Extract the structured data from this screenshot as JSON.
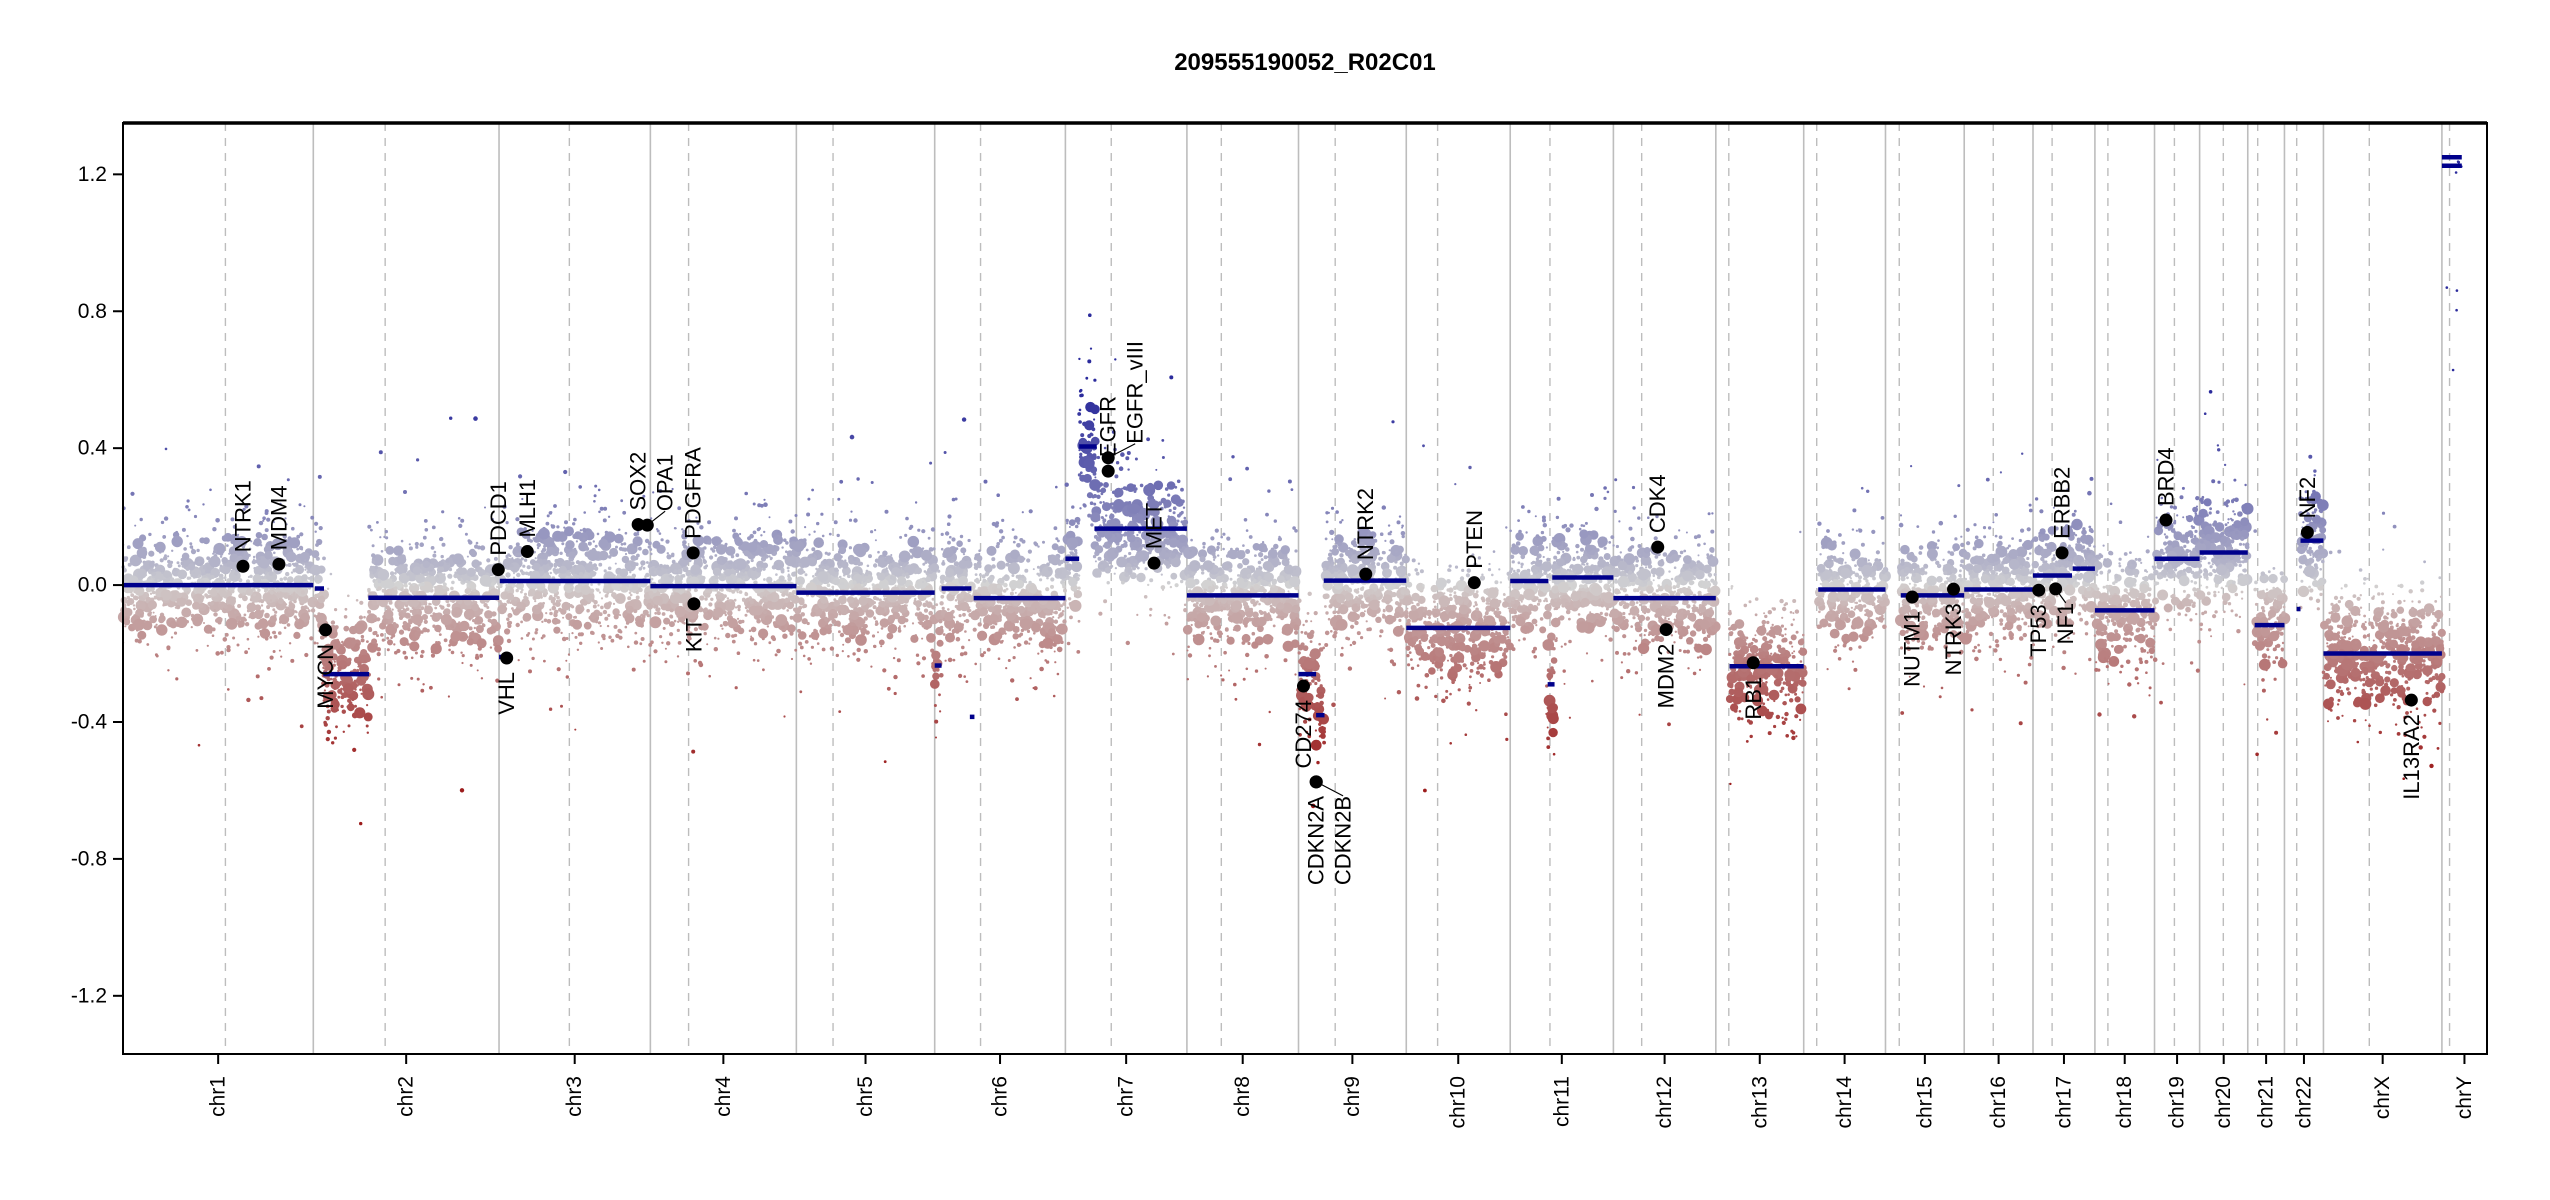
{
  "chart_data": {
    "type": "scatter",
    "title": "209555190052_R02C01",
    "xlabel": "",
    "ylabel": "",
    "ylim": [
      -1.37,
      1.35
    ],
    "yticks": [
      1.2,
      0.8,
      0.4,
      0.0,
      -0.4,
      -0.8,
      -1.2
    ],
    "ytick_labels": [
      "1.2",
      "0.8",
      "0.4",
      "0.0",
      "-0.4",
      "-0.8",
      "-1.2"
    ],
    "grid": "chromosome boundaries (solid) and centromeres (dashed)",
    "colors": {
      "gain": "#2b2b9c",
      "neutral": "#d3d3d3",
      "loss": "#9c1c1c",
      "segment": "#00008b",
      "gene": "#000000",
      "boundary": "#bdbdbd"
    },
    "chromosomes": [
      {
        "name": "chr1",
        "length": 249,
        "centromere": 134
      },
      {
        "name": "chr2",
        "length": 243,
        "centromere": 94
      },
      {
        "name": "chr3",
        "length": 198,
        "centromere": 92
      },
      {
        "name": "chr4",
        "length": 191,
        "centromere": 50
      },
      {
        "name": "chr5",
        "length": 181,
        "centromere": 48
      },
      {
        "name": "chr6",
        "length": 171,
        "centromere": 60
      },
      {
        "name": "chr7",
        "length": 159,
        "centromere": 60
      },
      {
        "name": "chr8",
        "length": 146,
        "centromere": 45
      },
      {
        "name": "chr9",
        "length": 141,
        "centromere": 48
      },
      {
        "name": "chr10",
        "length": 136,
        "centromere": 41
      },
      {
        "name": "chr11",
        "length": 135,
        "centromere": 52
      },
      {
        "name": "chr12",
        "length": 134,
        "centromere": 37
      },
      {
        "name": "chr13",
        "length": 115,
        "centromere": 17
      },
      {
        "name": "chr14",
        "length": 107,
        "centromere": 17
      },
      {
        "name": "chr15",
        "length": 103,
        "centromere": 18
      },
      {
        "name": "chr16",
        "length": 90,
        "centromere": 38
      },
      {
        "name": "chr17",
        "length": 81,
        "centromere": 25
      },
      {
        "name": "chr18",
        "length": 78,
        "centromere": 17
      },
      {
        "name": "chr19",
        "length": 59,
        "centromere": 26
      },
      {
        "name": "chr20",
        "length": 63,
        "centromere": 31
      },
      {
        "name": "chr21",
        "length": 48,
        "centromere": 13
      },
      {
        "name": "chr22",
        "length": 51,
        "centromere": 16
      },
      {
        "name": "chrX",
        "length": 155,
        "centromere": 60
      },
      {
        "name": "chrY",
        "length": 59,
        "centromere": 10
      }
    ],
    "segments": [
      {
        "chr": "chr1",
        "start": 0,
        "end": 249,
        "value": 0.0
      },
      {
        "chr": "chr2",
        "start": 2,
        "end": 14,
        "value": -0.01
      },
      {
        "chr": "chr2",
        "start": 13,
        "end": 73,
        "value": -0.26
      },
      {
        "chr": "chr2",
        "start": 72,
        "end": 243,
        "value": -0.037
      },
      {
        "chr": "chr3",
        "start": 0,
        "end": 4,
        "value": -0.21
      },
      {
        "chr": "chr3",
        "start": 1,
        "end": 198,
        "value": 0.012
      },
      {
        "chr": "chr4",
        "start": 0,
        "end": 191,
        "value": -0.003
      },
      {
        "chr": "chr5",
        "start": 0,
        "end": 181,
        "value": -0.022
      },
      {
        "chr": "chr6",
        "start": 0,
        "end": 9,
        "value": -0.235
      },
      {
        "chr": "chr6",
        "start": 9,
        "end": 48,
        "value": -0.01
      },
      {
        "chr": "chr6",
        "start": 46,
        "end": 52,
        "value": -0.385
      },
      {
        "chr": "chr6",
        "start": 51,
        "end": 171,
        "value": -0.038
      },
      {
        "chr": "chr7",
        "start": 0,
        "end": 18,
        "value": 0.077
      },
      {
        "chr": "chr7",
        "start": 18,
        "end": 41,
        "value": 0.405
      },
      {
        "chr": "chr7",
        "start": 38,
        "end": 159,
        "value": 0.165
      },
      {
        "chr": "chr8",
        "start": 0,
        "end": 146,
        "value": -0.03
      },
      {
        "chr": "chr9",
        "start": 0,
        "end": 23,
        "value": -0.26
      },
      {
        "chr": "chr9",
        "start": 23,
        "end": 34,
        "value": -0.38
      },
      {
        "chr": "chr9",
        "start": 33,
        "end": 141,
        "value": 0.013
      },
      {
        "chr": "chr10",
        "start": 0,
        "end": 136,
        "value": -0.125
      },
      {
        "chr": "chr11",
        "start": 0,
        "end": 50,
        "value": 0.012
      },
      {
        "chr": "chr11",
        "start": 49,
        "end": 58,
        "value": -0.29
      },
      {
        "chr": "chr11",
        "start": 55,
        "end": 135,
        "value": 0.022
      },
      {
        "chr": "chr12",
        "start": 0,
        "end": 134,
        "value": -0.038
      },
      {
        "chr": "chr13",
        "start": 18,
        "end": 115,
        "value": -0.237
      },
      {
        "chr": "chr14",
        "start": 19,
        "end": 107,
        "value": -0.013
      },
      {
        "chr": "chr15",
        "start": 20,
        "end": 103,
        "value": -0.03
      },
      {
        "chr": "chr16",
        "start": 0,
        "end": 90,
        "value": -0.013
      },
      {
        "chr": "chr17",
        "start": 0,
        "end": 51,
        "value": 0.028
      },
      {
        "chr": "chr17",
        "start": 52,
        "end": 81,
        "value": 0.048
      },
      {
        "chr": "chr18",
        "start": 0,
        "end": 78,
        "value": -0.074
      },
      {
        "chr": "chr19",
        "start": 0,
        "end": 59,
        "value": 0.077
      },
      {
        "chr": "chr20",
        "start": 0,
        "end": 63,
        "value": 0.095
      },
      {
        "chr": "chr21",
        "start": 9,
        "end": 48,
        "value": -0.117
      },
      {
        "chr": "chr22",
        "start": 16,
        "end": 21,
        "value": -0.07
      },
      {
        "chr": "chr22",
        "start": 21,
        "end": 51,
        "value": 0.13
      },
      {
        "chr": "chrX",
        "start": 0,
        "end": 155,
        "value": -0.2
      },
      {
        "chr": "chrY",
        "start": 0,
        "end": 26,
        "value": 1.225
      },
      {
        "chr": "chrY",
        "start": 0,
        "end": 26,
        "value": 1.25
      }
    ],
    "genes": [
      {
        "name": "NTRK1",
        "chr": "chr1",
        "pos": 157,
        "value": 0.055,
        "side": "above"
      },
      {
        "name": "MDM4",
        "chr": "chr1",
        "pos": 204,
        "value": 0.061,
        "side": "above"
      },
      {
        "name": "MYCN",
        "chr": "chr2",
        "pos": 16,
        "value": -0.131,
        "side": "below"
      },
      {
        "name": "PDCD1",
        "chr": "chr2",
        "pos": 242,
        "value": 0.045,
        "side": "above"
      },
      {
        "name": "VHL",
        "chr": "chr3",
        "pos": 10,
        "value": -0.213,
        "side": "below"
      },
      {
        "name": "MLH1",
        "chr": "chr3",
        "pos": 37,
        "value": 0.098,
        "side": "above"
      },
      {
        "name": "SOX2",
        "chr": "chr3",
        "pos": 182,
        "value": 0.177,
        "side": "above"
      },
      {
        "name": "OPA1",
        "chr": "chr3",
        "pos": 194,
        "value": 0.175,
        "side": "above"
      },
      {
        "name": "PDGFRA",
        "chr": "chr4",
        "pos": 56,
        "value": 0.094,
        "side": "above"
      },
      {
        "name": "KIT",
        "chr": "chr4",
        "pos": 57,
        "value": -0.055,
        "side": "below"
      },
      {
        "name": "EGFR",
        "chr": "chr7",
        "pos": 56,
        "value": 0.333,
        "side": "above"
      },
      {
        "name": "EGFR_vIII",
        "chr": "chr7",
        "pos": 56,
        "value": 0.372,
        "side": "above"
      },
      {
        "name": "MET",
        "chr": "chr7",
        "pos": 116,
        "value": 0.064,
        "side": "above"
      },
      {
        "name": "CD274",
        "chr": "chr9",
        "pos": 6.5,
        "value": -0.295,
        "side": "below"
      },
      {
        "name": "CDKN2A",
        "chr": "chr9",
        "pos": 23,
        "value": -0.575,
        "side": "below"
      },
      {
        "name": "CDKN2B",
        "chr": "chr9",
        "pos": 23.3,
        "value": -0.575,
        "side": "below"
      },
      {
        "name": "NTRK2",
        "chr": "chr9",
        "pos": 88,
        "value": 0.032,
        "side": "above"
      },
      {
        "name": "PTEN",
        "chr": "chr10",
        "pos": 89,
        "value": 0.007,
        "side": "above"
      },
      {
        "name": "CDK4",
        "chr": "chr12",
        "pos": 58,
        "value": 0.111,
        "side": "above"
      },
      {
        "name": "MDM2",
        "chr": "chr12",
        "pos": 69,
        "value": -0.13,
        "side": "below"
      },
      {
        "name": "RB1",
        "chr": "chr13",
        "pos": 49,
        "value": -0.227,
        "side": "below"
      },
      {
        "name": "NUTM1",
        "chr": "chr15",
        "pos": 35,
        "value": -0.035,
        "side": "below"
      },
      {
        "name": "NTRK3",
        "chr": "chr15",
        "pos": 89,
        "value": -0.012,
        "side": "below"
      },
      {
        "name": "TP53",
        "chr": "chr17",
        "pos": 7.5,
        "value": -0.015,
        "side": "below"
      },
      {
        "name": "NF1",
        "chr": "chr17",
        "pos": 29.6,
        "value": -0.011,
        "side": "below"
      },
      {
        "name": "ERBB2",
        "chr": "chr17",
        "pos": 38,
        "value": 0.094,
        "side": "above"
      },
      {
        "name": "BRD4",
        "chr": "chr19",
        "pos": 15,
        "value": 0.19,
        "side": "above"
      },
      {
        "name": "NF2",
        "chr": "chr22",
        "pos": 30,
        "value": 0.154,
        "side": "above"
      },
      {
        "name": "IL13RA2",
        "chr": "chrX",
        "pos": 115,
        "value": -0.336,
        "side": "below"
      }
    ]
  }
}
